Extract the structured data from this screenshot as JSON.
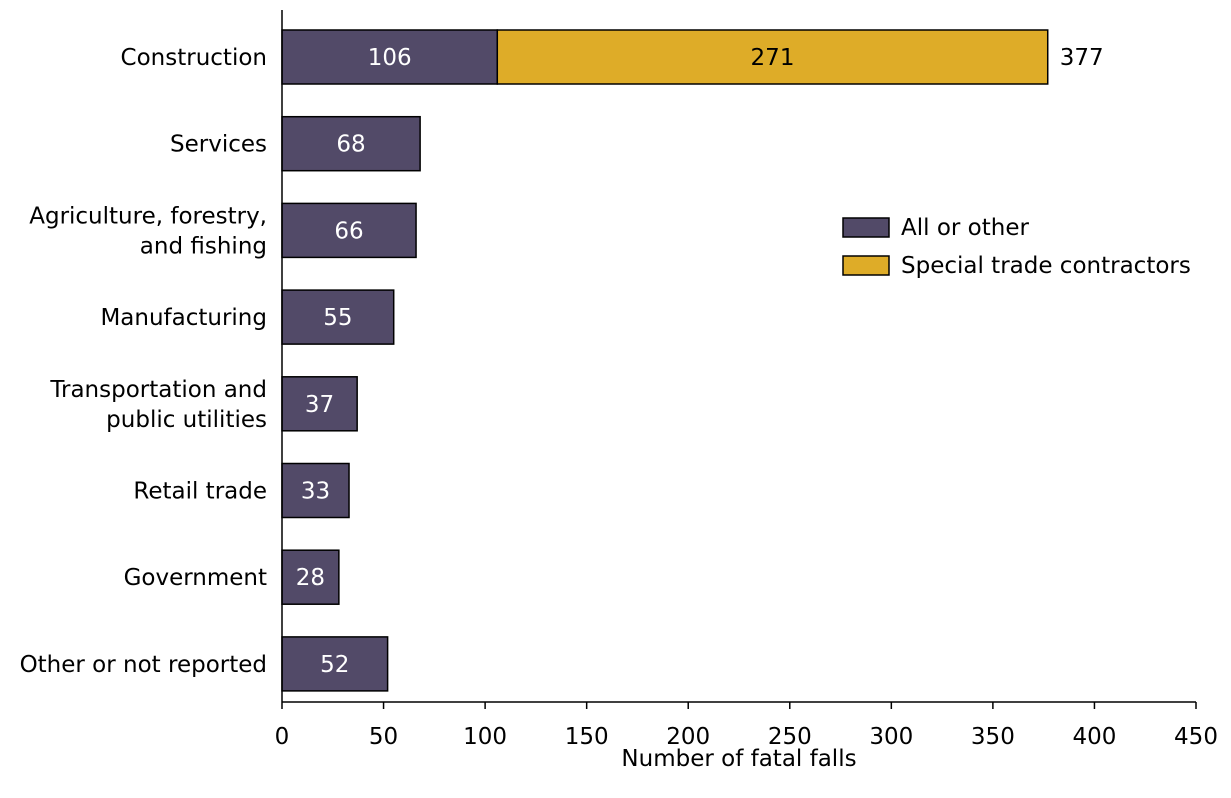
{
  "chart_data": {
    "type": "bar",
    "orientation": "horizontal",
    "stacked": true,
    "categories": [
      [
        "Construction"
      ],
      [
        "Services"
      ],
      [
        "Agriculture, forestry,",
        "and fishing"
      ],
      [
        "Manufacturing"
      ],
      [
        "Transportation and",
        "public utilities"
      ],
      [
        "Retail trade"
      ],
      [
        "Government"
      ],
      [
        "Other or not reported"
      ]
    ],
    "series": [
      {
        "name": "All or other",
        "color": "#524a68",
        "values": [
          106,
          68,
          66,
          55,
          37,
          33,
          28,
          52
        ]
      },
      {
        "name": "Special trade contractors",
        "color": "#deac28",
        "values": [
          271,
          0,
          0,
          0,
          0,
          0,
          0,
          0
        ]
      }
    ],
    "totals": [
      377,
      null,
      null,
      null,
      null,
      null,
      null,
      null
    ],
    "xlabel": "Number of fatal falls",
    "ylabel": "",
    "xlim": [
      0,
      450
    ],
    "xticks": [
      0,
      50,
      100,
      150,
      200,
      250,
      300,
      350,
      400,
      450
    ],
    "grid": false,
    "legend_position": "right"
  }
}
